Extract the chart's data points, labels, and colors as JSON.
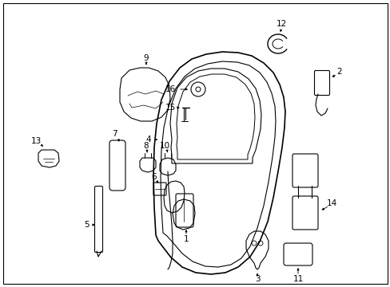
{
  "background_color": "#ffffff",
  "border_color": "#000000",
  "fig_width": 4.89,
  "fig_height": 3.6,
  "dpi": 100,
  "line_color": "#000000",
  "text_color": "#000000",
  "font_size": 7.5
}
